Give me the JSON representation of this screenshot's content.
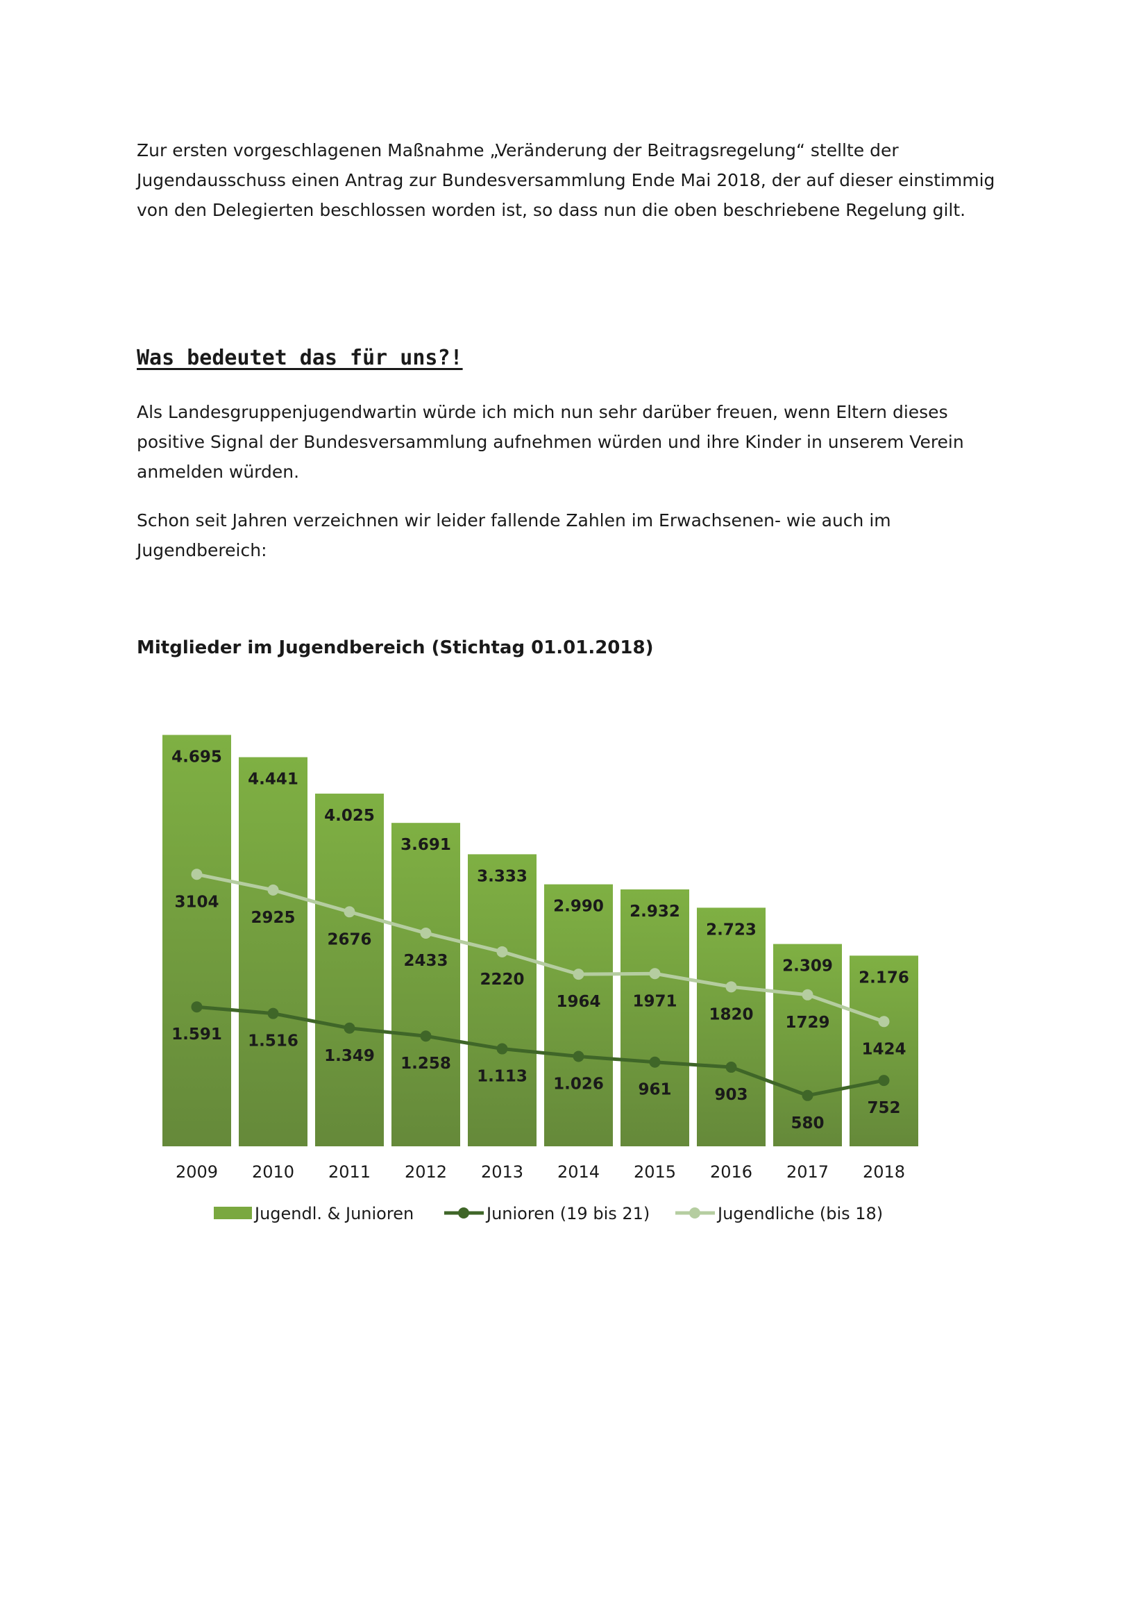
{
  "paragraphs": {
    "p1": "Zur ersten vorgeschlagenen Maßnahme „Veränderung der Beitragsregelung“ stellte der Jugendausschuss einen Antrag zur Bundesversammlung Ende Mai 2018, der auf dieser einstimmig von den Delegierten beschlossen worden ist, so dass nun die oben beschriebene Regelung gilt.",
    "heading": "Was bedeutet das für uns?!",
    "p2": "Als Landesgruppenjugendwartin würde ich mich nun sehr darüber freuen, wenn Eltern dieses positive Signal der Bundesversammlung aufnehmen würden und ihre Kinder in unserem Verein anmelden würden.",
    "p3": "Schon seit Jahren verzeichnen wir leider fallende Zahlen im Erwachsenen- wie auch im Jugendbereich:"
  },
  "chart_data": {
    "type": "bar",
    "title": "Mitglieder im Jugendbereich (Stichtag 01.01.2018)",
    "categories": [
      "2009",
      "2010",
      "2011",
      "2012",
      "2013",
      "2014",
      "2015",
      "2016",
      "2017",
      "2018"
    ],
    "ylim": [
      0,
      5000
    ],
    "grid": false,
    "legend_position": "bottom",
    "series": [
      {
        "name": "Jugendl. & Junioren",
        "kind": "bar",
        "color": "#7aa83f",
        "values": [
          4695,
          4441,
          4025,
          3691,
          3333,
          2990,
          2932,
          2723,
          2309,
          2176
        ],
        "labels": [
          "4.695",
          "4.441",
          "4.025",
          "3.691",
          "3.333",
          "2.990",
          "2.932",
          "2.723",
          "2.309",
          "2.176"
        ]
      },
      {
        "name": "Junioren (19 bis 21)",
        "kind": "line",
        "color": "#3f6628",
        "values": [
          1591,
          1516,
          1349,
          1258,
          1113,
          1026,
          961,
          903,
          580,
          752
        ],
        "labels": [
          "1.591",
          "1.516",
          "1.349",
          "1.258",
          "1.113",
          "1.026",
          "961",
          "903",
          "580",
          "752"
        ]
      },
      {
        "name": "Jugendliche (bis 18)",
        "kind": "line",
        "color": "#b5cda0",
        "values": [
          3104,
          2925,
          2676,
          2433,
          2220,
          1964,
          1971,
          1820,
          1729,
          1424
        ],
        "labels": [
          "3104",
          "2925",
          "2676",
          "2433",
          "2220",
          "1964",
          "1971",
          "1820",
          "1729",
          "1424"
        ]
      }
    ]
  }
}
